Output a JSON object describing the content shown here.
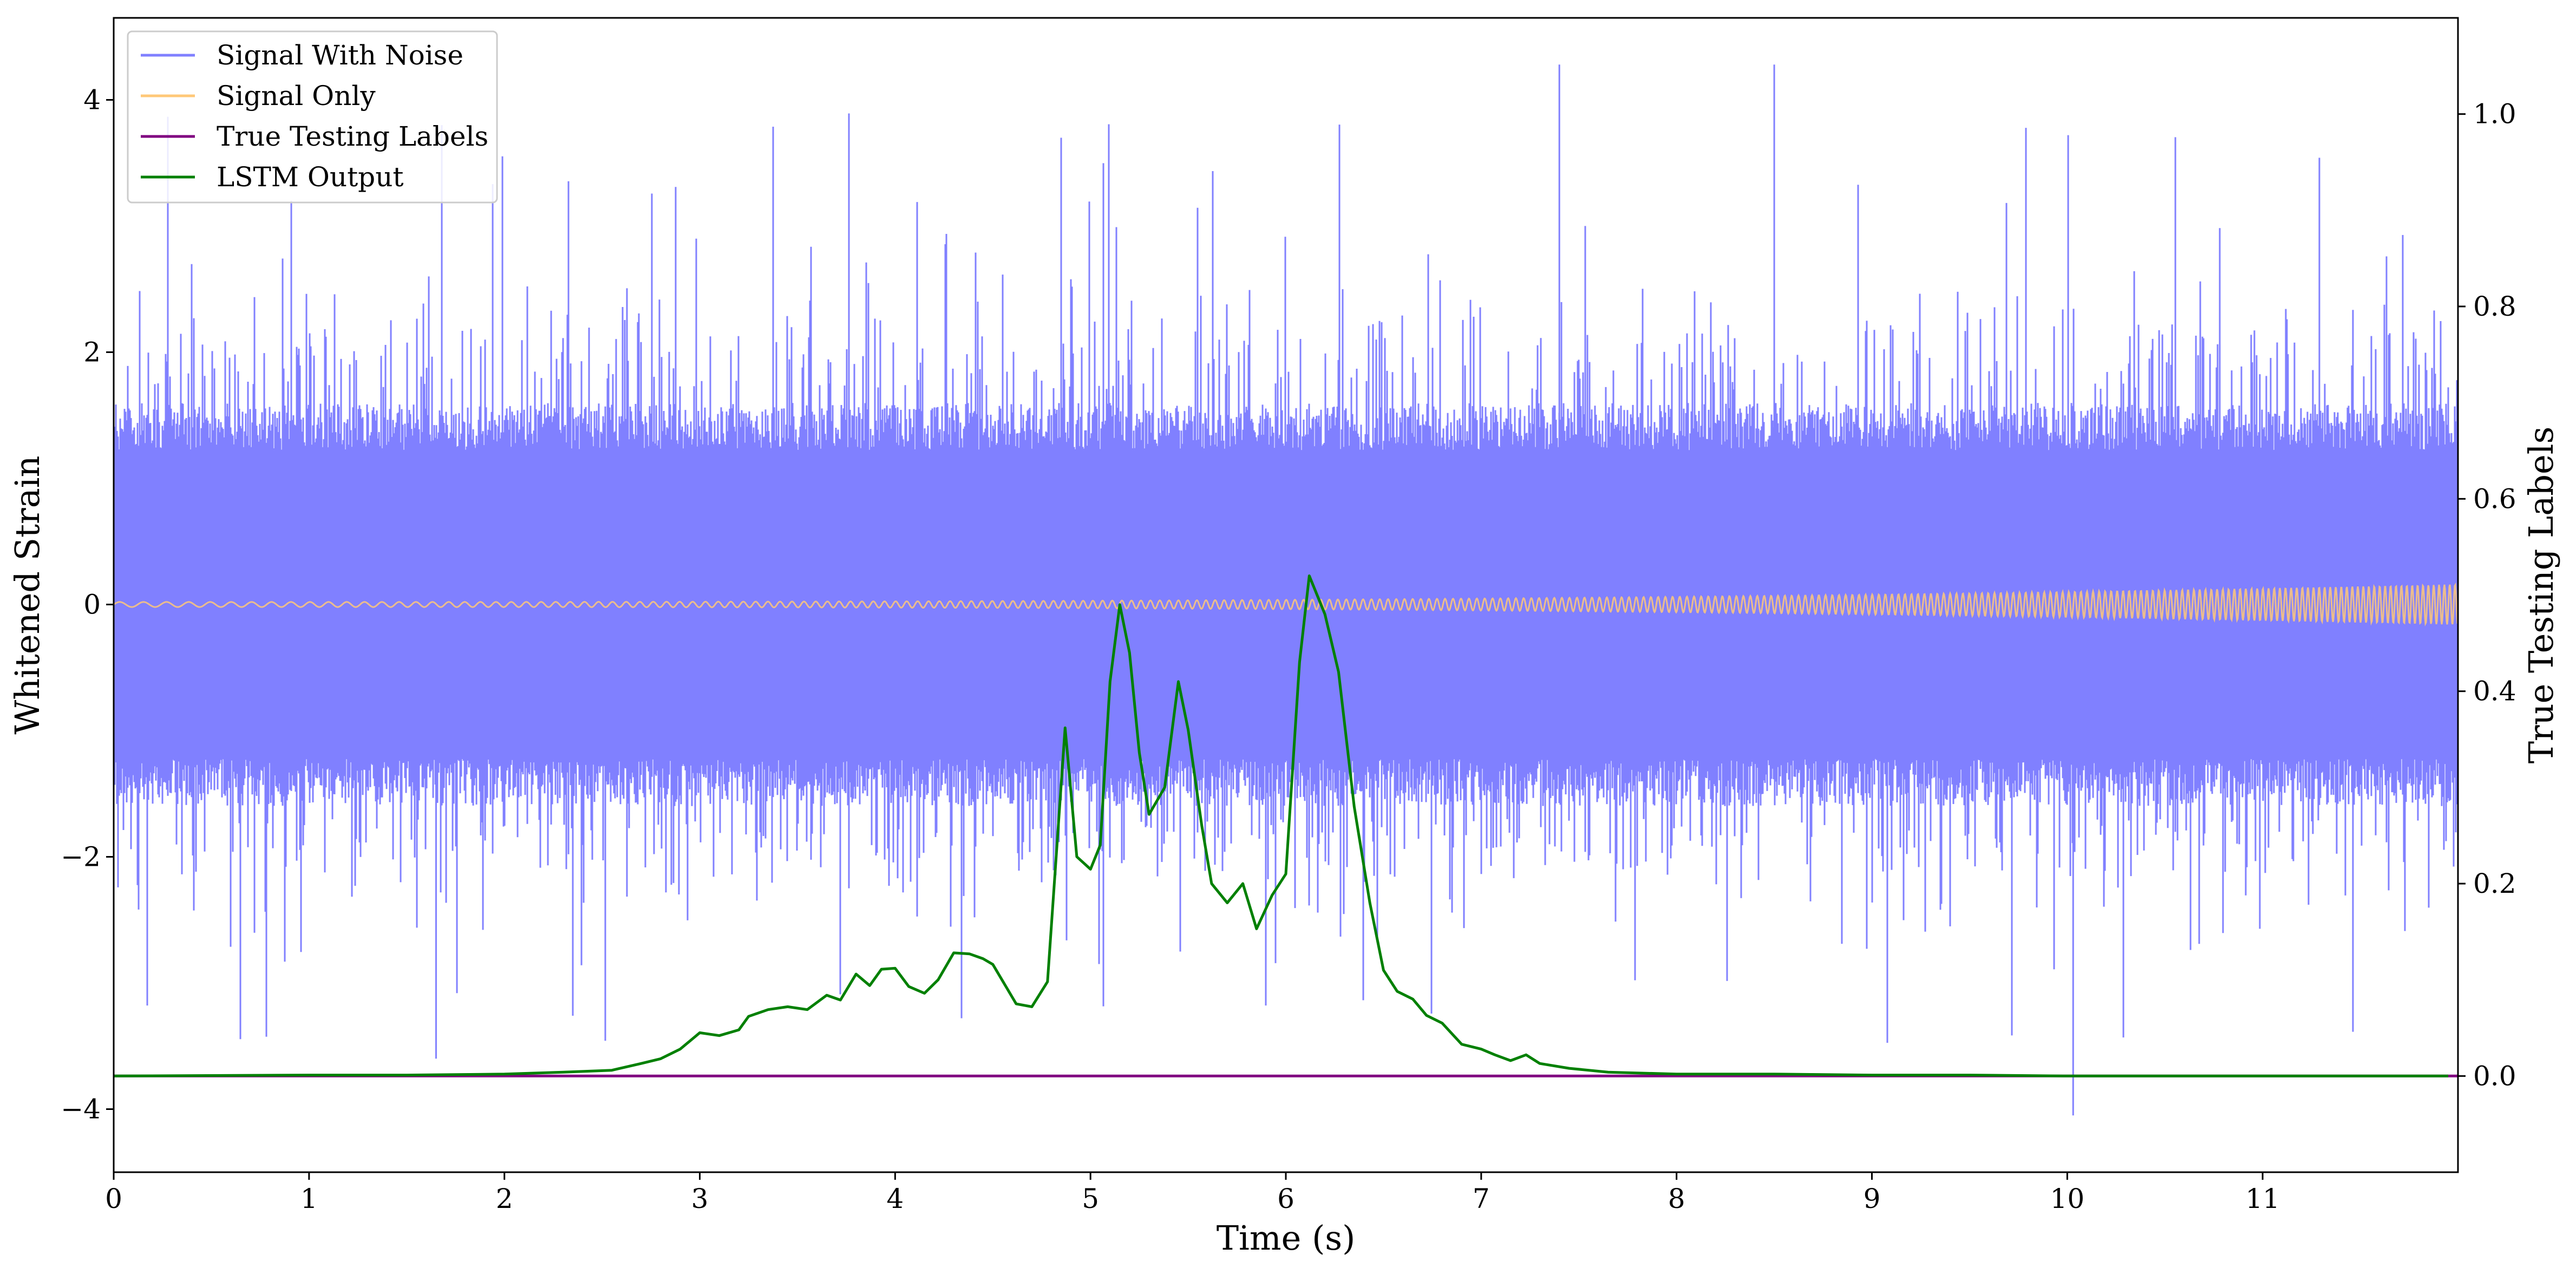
{
  "chart_data": {
    "type": "line",
    "xlabel": "Time (s)",
    "ylabel": "Whitened Strain",
    "y2label": "True Testing Labels",
    "xlim": [
      0,
      12
    ],
    "ylim": [
      -4.5,
      4.65
    ],
    "y2lim": [
      -0.1,
      1.1
    ],
    "xticks": [
      "0",
      "1",
      "2",
      "3",
      "4",
      "5",
      "6",
      "7",
      "8",
      "9",
      "10",
      "11"
    ],
    "yticks": [
      "−4",
      "−2",
      "0",
      "2",
      "4"
    ],
    "y2ticks": [
      "0.0",
      "0.2",
      "0.4",
      "0.6",
      "0.8",
      "1.0"
    ],
    "legend_position": "top-left",
    "grid": false,
    "series": [
      {
        "name": "Signal With Noise",
        "axis": "left",
        "color": "#8080ff",
        "kind": "noise",
        "typical_amplitude": [
          -1.7,
          1.7
        ],
        "peak_range": [
          -4.05,
          4.3
        ],
        "extreme_points": [
          {
            "x": 1.65,
            "y": -3.6
          },
          {
            "x": 10.03,
            "y": -4.05
          },
          {
            "x": 8.5,
            "y": 4.28
          },
          {
            "x": 7.4,
            "y": 4.28
          },
          {
            "x": 4.85,
            "y": 3.7
          }
        ]
      },
      {
        "name": "Signal Only",
        "axis": "left",
        "color": "#ffc878",
        "kind": "chirp",
        "amplitude_start": 0.02,
        "amplitude_end": 0.16
      },
      {
        "name": "True Testing Labels",
        "axis": "right",
        "color": "#800080",
        "x": [
          0,
          12
        ],
        "y": [
          0,
          0
        ]
      },
      {
        "name": "LSTM Output",
        "axis": "right",
        "color": "#008000",
        "x": [
          0,
          1,
          1.5,
          2,
          2.3,
          2.55,
          2.7,
          2.8,
          2.9,
          3.0,
          3.1,
          3.2,
          3.25,
          3.35,
          3.45,
          3.55,
          3.65,
          3.72,
          3.8,
          3.87,
          3.93,
          4.0,
          4.07,
          4.15,
          4.22,
          4.3,
          4.38,
          4.45,
          4.5,
          4.62,
          4.7,
          4.78,
          4.87,
          4.93,
          5.0,
          5.05,
          5.1,
          5.15,
          5.2,
          5.25,
          5.3,
          5.38,
          5.45,
          5.5,
          5.57,
          5.62,
          5.7,
          5.78,
          5.85,
          5.93,
          6.0,
          6.07,
          6.12,
          6.2,
          6.27,
          6.35,
          6.43,
          6.5,
          6.57,
          6.65,
          6.72,
          6.8,
          6.9,
          7.0,
          7.07,
          7.15,
          7.23,
          7.3,
          7.45,
          7.65,
          8.0,
          8.5,
          9.0,
          9.5,
          10.0,
          11.0,
          11.95
        ],
        "y": [
          0.0,
          0.001,
          0.001,
          0.002,
          0.004,
          0.006,
          0.013,
          0.018,
          0.028,
          0.045,
          0.042,
          0.048,
          0.062,
          0.069,
          0.072,
          0.069,
          0.084,
          0.079,
          0.106,
          0.094,
          0.111,
          0.112,
          0.093,
          0.086,
          0.1,
          0.128,
          0.127,
          0.122,
          0.116,
          0.075,
          0.072,
          0.098,
          0.362,
          0.228,
          0.215,
          0.24,
          0.41,
          0.49,
          0.44,
          0.336,
          0.272,
          0.3,
          0.41,
          0.36,
          0.26,
          0.2,
          0.18,
          0.2,
          0.153,
          0.188,
          0.21,
          0.43,
          0.52,
          0.48,
          0.42,
          0.28,
          0.18,
          0.11,
          0.088,
          0.08,
          0.063,
          0.055,
          0.033,
          0.028,
          0.022,
          0.016,
          0.022,
          0.013,
          0.008,
          0.004,
          0.002,
          0.002,
          0.001,
          0.001,
          0.0,
          0.0,
          0.0
        ]
      }
    ]
  }
}
